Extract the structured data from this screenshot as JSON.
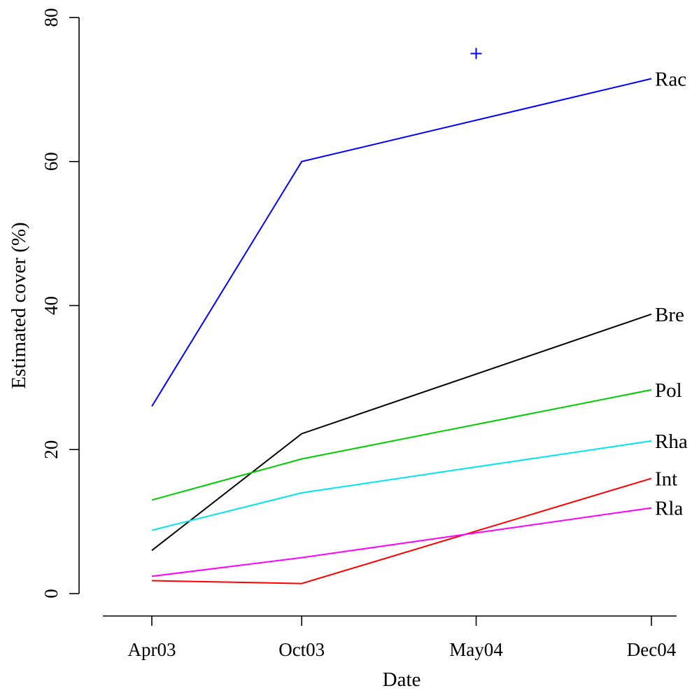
{
  "chart_data": {
    "type": "line",
    "xlabel": "Date",
    "ylabel": "Estimated cover (%)",
    "categories": [
      "Apr03",
      "Oct03",
      "May04",
      "Dec04"
    ],
    "x": [
      "2003-04-15",
      "2003-10-15",
      "2004-05-15",
      "2004-12-15"
    ],
    "ylim": [
      0,
      80
    ],
    "yticks": [
      "0",
      "20",
      "40",
      "60",
      "80"
    ],
    "grid": false,
    "legend": "none",
    "series": [
      {
        "name": "Rac",
        "color": "#0000ff",
        "x": [
          "2003-04-15",
          "2003-10-15",
          "2004-12-15"
        ],
        "values": [
          26,
          60,
          71.5
        ]
      },
      {
        "name": "Bre",
        "color": "#000000",
        "x": [
          "2003-04-15",
          "2003-10-15",
          "2004-12-15"
        ],
        "values": [
          6,
          22.2,
          38.8
        ]
      },
      {
        "name": "Pol",
        "color": "#00cd00",
        "x": [
          "2003-04-15",
          "2003-10-15",
          "2004-12-15"
        ],
        "values": [
          13,
          18.7,
          28.3
        ]
      },
      {
        "name": "Rha",
        "color": "#00e5ee",
        "x": [
          "2003-04-15",
          "2003-10-15",
          "2004-12-15"
        ],
        "values": [
          8.8,
          14,
          21.2
        ]
      },
      {
        "name": "Int",
        "color": "#ff0000",
        "x": [
          "2003-04-15",
          "2003-10-15",
          "2004-12-15"
        ],
        "values": [
          1.8,
          1.4,
          16
        ]
      },
      {
        "name": "Rla",
        "color": "#ff00ff",
        "x": [
          "2003-04-15",
          "2003-10-15",
          "2004-12-15"
        ],
        "values": [
          2.4,
          5,
          11.9
        ]
      }
    ],
    "annotations": [
      {
        "marker": "plus-icon",
        "color": "#0000ff",
        "x": "2004-05-15",
        "y": 75
      }
    ]
  }
}
